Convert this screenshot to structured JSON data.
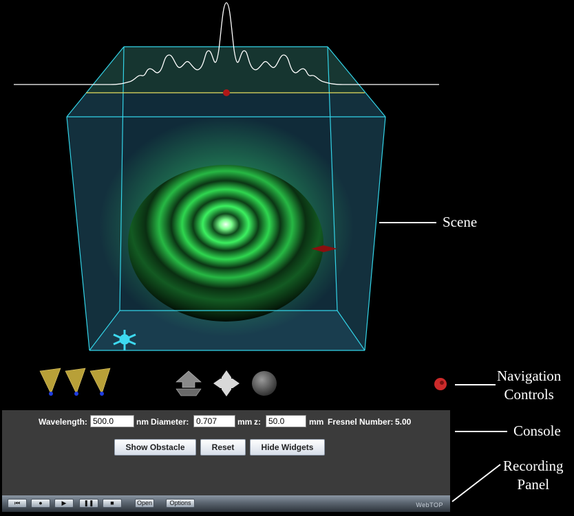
{
  "callouts": {
    "scene": "Scene",
    "navigation_line1": "Navigation",
    "navigation_line2": "Controls",
    "console": "Console",
    "recording_line1": "Recording",
    "recording_line2": "Panel"
  },
  "console": {
    "wavelength_label": "Wavelength:",
    "wavelength_value": "500.0",
    "wavelength_unit": "nm",
    "diameter_label": "Diameter:",
    "diameter_value": "0.707",
    "diameter_unit": "mm",
    "z_label": "z:",
    "z_value": "50.0",
    "z_unit": "mm",
    "fresnel_label": "Fresnel Number:",
    "fresnel_value": "5.00",
    "buttons": {
      "show_obstacle": "Show Obstacle",
      "reset": "Reset",
      "hide_widgets": "Hide Widgets"
    }
  },
  "recording": {
    "open": "Open",
    "options": "Options",
    "brand": "WebTOP"
  },
  "navigation": {
    "icons": [
      "view-cone-icon",
      "view-cone-icon",
      "view-cone-icon",
      "pan-arrow-icon",
      "move-arrows-icon",
      "rotate-sphere-icon",
      "record-dot-icon"
    ]
  },
  "colors": {
    "pattern_green": "#35e05a",
    "box_edge": "#33d4e8",
    "console_bg": "#3b3b3b"
  }
}
